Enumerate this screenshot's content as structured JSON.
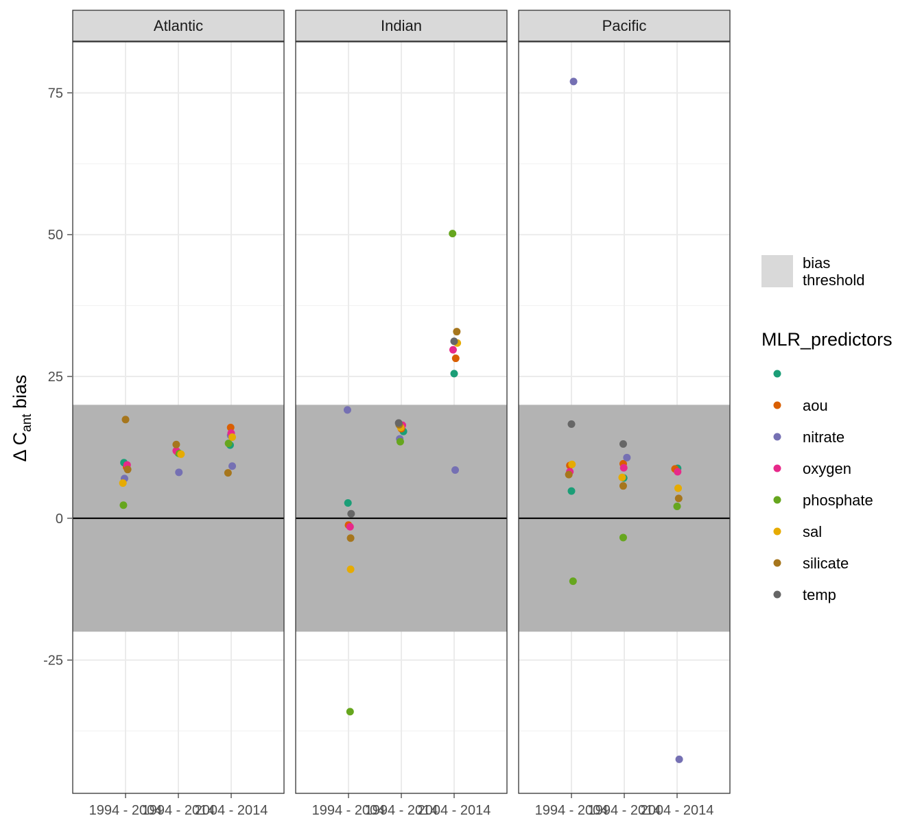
{
  "chart_data": {
    "type": "scatter",
    "ylabel": {
      "main": "Δ C",
      "sub": "ant",
      "tail": " bias"
    },
    "ylim": [
      -48.5,
      84
    ],
    "yticks": [
      -25,
      0,
      25,
      50,
      75
    ],
    "yticks_minor": [
      -37.5,
      -12.5,
      12.5,
      37.5,
      62.5
    ],
    "ytick_labels": [
      "-25",
      "0",
      "25",
      "50",
      "75"
    ],
    "categories": [
      "1994 - 2004",
      "1994 - 2014",
      "2004 - 2014"
    ],
    "facets": [
      "Atlantic",
      "Indian",
      "Pacific"
    ],
    "bias_threshold": [
      -20,
      20
    ],
    "reference_line": 0,
    "grid": true,
    "legend_position": "right",
    "legend": {
      "fill_label": "bias\nthreshold",
      "fill_label_lines": [
        "bias",
        "threshold"
      ],
      "color_title": "MLR_predictors",
      "entries": [
        "",
        "aou",
        "nitrate",
        "oxygen",
        "phosphate",
        "sal",
        "silicate",
        "temp"
      ]
    },
    "series_colors": {
      "": "#1b9e77",
      "aou": "#d95f02",
      "nitrate": "#7570b3",
      "oxygen": "#e7298a",
      "phosphate": "#66a61e",
      "sal": "#e6ab02",
      "silicate": "#a6761d",
      "temp": "#666666"
    },
    "points": [
      {
        "facet": "Atlantic",
        "x": "1994 - 2004",
        "series": "",
        "y": 9.8,
        "jitter": -0.03
      },
      {
        "facet": "Atlantic",
        "x": "1994 - 2004",
        "series": "aou",
        "y": 9.0,
        "jitter": 0.02
      },
      {
        "facet": "Atlantic",
        "x": "1994 - 2004",
        "series": "nitrate",
        "y": 7.0,
        "jitter": -0.02
      },
      {
        "facet": "Atlantic",
        "x": "1994 - 2004",
        "series": "oxygen",
        "y": 9.4,
        "jitter": 0.03
      },
      {
        "facet": "Atlantic",
        "x": "1994 - 2004",
        "series": "phosphate",
        "y": 2.3,
        "jitter": -0.04
      },
      {
        "facet": "Atlantic",
        "x": "1994 - 2004",
        "series": "sal",
        "y": 6.2,
        "jitter": -0.05
      },
      {
        "facet": "Atlantic",
        "x": "1994 - 2004",
        "series": "silicate",
        "y": 17.4,
        "jitter": 0.0
      },
      {
        "facet": "Atlantic",
        "x": "1994 - 2004",
        "series": "silicate",
        "y": 8.6,
        "jitter": 0.04
      },
      {
        "facet": "Atlantic",
        "x": "1994 - 2014",
        "series": "",
        "y": 11.5,
        "jitter": 0.0
      },
      {
        "facet": "Atlantic",
        "x": "1994 - 2014",
        "series": "aou",
        "y": 11.8,
        "jitter": -0.03
      },
      {
        "facet": "Atlantic",
        "x": "1994 - 2014",
        "series": "nitrate",
        "y": 8.1,
        "jitter": 0.01
      },
      {
        "facet": "Atlantic",
        "x": "1994 - 2014",
        "series": "oxygen",
        "y": 11.9,
        "jitter": -0.04
      },
      {
        "facet": "Atlantic",
        "x": "1994 - 2014",
        "series": "phosphate",
        "y": 11.4,
        "jitter": 0.02
      },
      {
        "facet": "Atlantic",
        "x": "1994 - 2014",
        "series": "sal",
        "y": 11.3,
        "jitter": 0.05
      },
      {
        "facet": "Atlantic",
        "x": "1994 - 2014",
        "series": "silicate",
        "y": 13.0,
        "jitter": -0.04
      },
      {
        "facet": "Atlantic",
        "x": "2004 - 2014",
        "series": "",
        "y": 12.9,
        "jitter": -0.02
      },
      {
        "facet": "Atlantic",
        "x": "2004 - 2014",
        "series": "aou",
        "y": 16.0,
        "jitter": -0.01
      },
      {
        "facet": "Atlantic",
        "x": "2004 - 2014",
        "series": "nitrate",
        "y": 14.6,
        "jitter": -0.01
      },
      {
        "facet": "Atlantic",
        "x": "2004 - 2014",
        "series": "nitrate",
        "y": 9.2,
        "jitter": 0.02
      },
      {
        "facet": "Atlantic",
        "x": "2004 - 2014",
        "series": "oxygen",
        "y": 15.0,
        "jitter": 0.0
      },
      {
        "facet": "Atlantic",
        "x": "2004 - 2014",
        "series": "phosphate",
        "y": 13.2,
        "jitter": -0.05
      },
      {
        "facet": "Atlantic",
        "x": "2004 - 2014",
        "series": "sal",
        "y": 14.3,
        "jitter": 0.02
      },
      {
        "facet": "Atlantic",
        "x": "2004 - 2014",
        "series": "silicate",
        "y": 8.0,
        "jitter": -0.06
      },
      {
        "facet": "Indian",
        "x": "1994 - 2004",
        "series": "",
        "y": 2.7,
        "jitter": -0.01
      },
      {
        "facet": "Indian",
        "x": "1994 - 2004",
        "series": "aou",
        "y": -1.2,
        "jitter": 0.0
      },
      {
        "facet": "Indian",
        "x": "1994 - 2004",
        "series": "nitrate",
        "y": 19.1,
        "jitter": -0.02
      },
      {
        "facet": "Indian",
        "x": "1994 - 2004",
        "series": "oxygen",
        "y": -1.5,
        "jitter": 0.03
      },
      {
        "facet": "Indian",
        "x": "1994 - 2004",
        "series": "phosphate",
        "y": -34.1,
        "jitter": 0.03
      },
      {
        "facet": "Indian",
        "x": "1994 - 2004",
        "series": "sal",
        "y": -9.0,
        "jitter": 0.04
      },
      {
        "facet": "Indian",
        "x": "1994 - 2004",
        "series": "silicate",
        "y": -3.5,
        "jitter": 0.04
      },
      {
        "facet": "Indian",
        "x": "1994 - 2004",
        "series": "temp",
        "y": 0.8,
        "jitter": 0.05
      },
      {
        "facet": "Indian",
        "x": "1994 - 2014",
        "series": "",
        "y": 15.3,
        "jitter": 0.04
      },
      {
        "facet": "Indian",
        "x": "1994 - 2014",
        "series": "aou",
        "y": 15.8,
        "jitter": 0.0
      },
      {
        "facet": "Indian",
        "x": "1994 - 2014",
        "series": "nitrate",
        "y": 14.0,
        "jitter": -0.03
      },
      {
        "facet": "Indian",
        "x": "1994 - 2014",
        "series": "oxygen",
        "y": 16.4,
        "jitter": 0.02
      },
      {
        "facet": "Indian",
        "x": "1994 - 2014",
        "series": "phosphate",
        "y": 13.5,
        "jitter": -0.02
      },
      {
        "facet": "Indian",
        "x": "1994 - 2014",
        "series": "sal",
        "y": 16.0,
        "jitter": -0.01
      },
      {
        "facet": "Indian",
        "x": "1994 - 2014",
        "series": "silicate",
        "y": 16.5,
        "jitter": -0.04
      },
      {
        "facet": "Indian",
        "x": "1994 - 2014",
        "series": "temp",
        "y": 16.8,
        "jitter": -0.05
      },
      {
        "facet": "Indian",
        "x": "2004 - 2014",
        "series": "",
        "y": 25.5,
        "jitter": 0.0
      },
      {
        "facet": "Indian",
        "x": "2004 - 2014",
        "series": "aou",
        "y": 28.2,
        "jitter": 0.03
      },
      {
        "facet": "Indian",
        "x": "2004 - 2014",
        "series": "nitrate",
        "y": 8.5,
        "jitter": 0.02
      },
      {
        "facet": "Indian",
        "x": "2004 - 2014",
        "series": "oxygen",
        "y": 29.7,
        "jitter": -0.02
      },
      {
        "facet": "Indian",
        "x": "2004 - 2014",
        "series": "phosphate",
        "y": 50.2,
        "jitter": -0.03
      },
      {
        "facet": "Indian",
        "x": "2004 - 2014",
        "series": "sal",
        "y": 30.9,
        "jitter": 0.06
      },
      {
        "facet": "Indian",
        "x": "2004 - 2014",
        "series": "silicate",
        "y": 32.9,
        "jitter": 0.05
      },
      {
        "facet": "Indian",
        "x": "2004 - 2014",
        "series": "temp",
        "y": 31.2,
        "jitter": 0.0
      },
      {
        "facet": "Pacific",
        "x": "1994 - 2004",
        "series": "",
        "y": 4.8,
        "jitter": 0.0
      },
      {
        "facet": "Pacific",
        "x": "1994 - 2004",
        "series": "aou",
        "y": 9.3,
        "jitter": -0.03
      },
      {
        "facet": "Pacific",
        "x": "1994 - 2004",
        "series": "nitrate",
        "y": 77.0,
        "jitter": 0.04
      },
      {
        "facet": "Pacific",
        "x": "1994 - 2004",
        "series": "oxygen",
        "y": 8.2,
        "jitter": -0.03
      },
      {
        "facet": "Pacific",
        "x": "1994 - 2004",
        "series": "phosphate",
        "y": -11.1,
        "jitter": 0.03
      },
      {
        "facet": "Pacific",
        "x": "1994 - 2004",
        "series": "sal",
        "y": 9.5,
        "jitter": 0.01
      },
      {
        "facet": "Pacific",
        "x": "1994 - 2004",
        "series": "silicate",
        "y": 7.7,
        "jitter": -0.05
      },
      {
        "facet": "Pacific",
        "x": "1994 - 2004",
        "series": "temp",
        "y": 16.6,
        "jitter": 0.0
      },
      {
        "facet": "Pacific",
        "x": "1994 - 2014",
        "series": "",
        "y": 7.1,
        "jitter": -0.01
      },
      {
        "facet": "Pacific",
        "x": "1994 - 2014",
        "series": "aou",
        "y": 9.6,
        "jitter": -0.02
      },
      {
        "facet": "Pacific",
        "x": "1994 - 2014",
        "series": "nitrate",
        "y": 10.7,
        "jitter": 0.05
      },
      {
        "facet": "Pacific",
        "x": "1994 - 2014",
        "series": "oxygen",
        "y": 8.9,
        "jitter": -0.01
      },
      {
        "facet": "Pacific",
        "x": "1994 - 2014",
        "series": "phosphate",
        "y": -3.4,
        "jitter": -0.02
      },
      {
        "facet": "Pacific",
        "x": "1994 - 2014",
        "series": "sal",
        "y": 7.2,
        "jitter": -0.04
      },
      {
        "facet": "Pacific",
        "x": "1994 - 2014",
        "series": "silicate",
        "y": 5.7,
        "jitter": -0.02
      },
      {
        "facet": "Pacific",
        "x": "1994 - 2014",
        "series": "temp",
        "y": 13.1,
        "jitter": -0.02
      },
      {
        "facet": "Pacific",
        "x": "2004 - 2014",
        "series": "",
        "y": 8.8,
        "jitter": 0.01
      },
      {
        "facet": "Pacific",
        "x": "2004 - 2014",
        "series": "aou",
        "y": 8.7,
        "jitter": -0.04
      },
      {
        "facet": "Pacific",
        "x": "2004 - 2014",
        "series": "nitrate",
        "y": -42.5,
        "jitter": 0.04
      },
      {
        "facet": "Pacific",
        "x": "2004 - 2014",
        "series": "oxygen",
        "y": 8.2,
        "jitter": 0.01
      },
      {
        "facet": "Pacific",
        "x": "2004 - 2014",
        "series": "phosphate",
        "y": 2.1,
        "jitter": 0.0
      },
      {
        "facet": "Pacific",
        "x": "2004 - 2014",
        "series": "sal",
        "y": 5.3,
        "jitter": 0.02
      },
      {
        "facet": "Pacific",
        "x": "2004 - 2014",
        "series": "silicate",
        "y": 3.5,
        "jitter": 0.03
      }
    ]
  }
}
